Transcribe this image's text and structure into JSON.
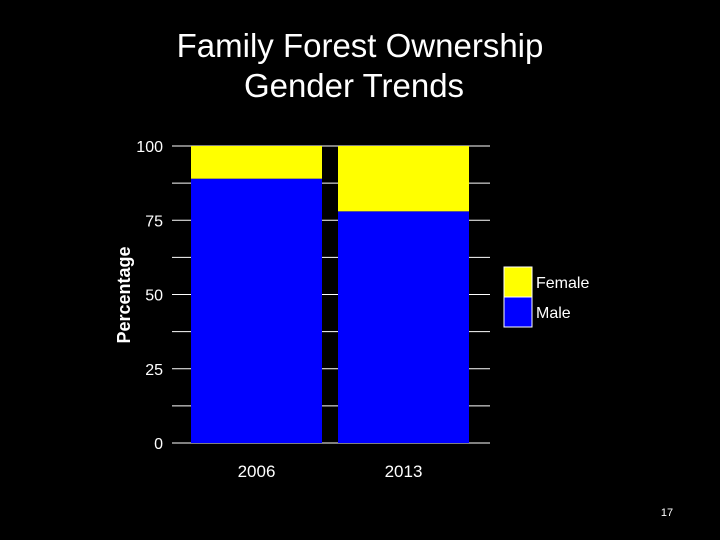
{
  "slide": {
    "title_line1": "Family Forest Ownership",
    "title_line2": "Gender Trends",
    "number": "17",
    "background": "#000000"
  },
  "chart_data": {
    "type": "bar",
    "stacked": true,
    "percent": true,
    "categories": [
      "2006",
      "2013"
    ],
    "series": [
      {
        "name": "Male",
        "values": [
          89,
          78
        ],
        "color": "#0000ff"
      },
      {
        "name": "Female",
        "values": [
          11,
          22
        ],
        "color": "#ffff00"
      }
    ],
    "ylabel": "Percentage",
    "xlabel": "",
    "ylim": [
      0,
      100
    ],
    "yticks": [
      0,
      25,
      50,
      75,
      100
    ],
    "grid": true,
    "legend": {
      "position": "right",
      "order": [
        "Female",
        "Male"
      ]
    }
  }
}
